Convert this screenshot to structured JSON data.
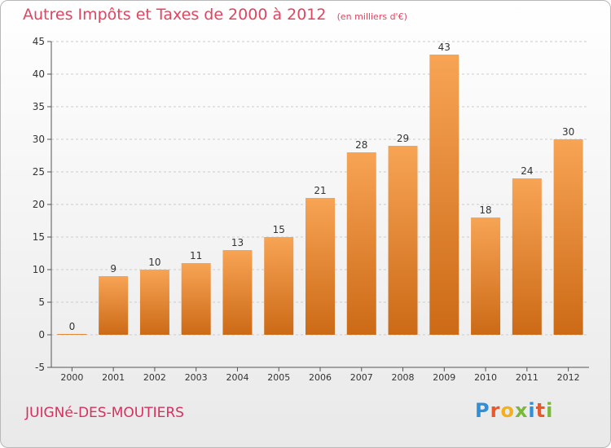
{
  "header": {
    "title": "Autres Impôts et Taxes de 2000 à 2012",
    "subtitle": "(en milliers d'€)"
  },
  "footer": {
    "commune": "JUIGNé-DES-MOUTIERS",
    "logo": "Proxiti"
  },
  "colors": {
    "bar_top": "#f7a455",
    "bar_bottom": "#cc6a16",
    "title": "#e0455f",
    "commune": "#d8305c"
  },
  "chart_data": {
    "type": "bar",
    "title": "Autres Impôts et Taxes de 2000 à 2012",
    "subtitle": "(en milliers d'€)",
    "categories": [
      "2000",
      "2001",
      "2002",
      "2003",
      "2004",
      "2005",
      "2006",
      "2007",
      "2008",
      "2009",
      "2010",
      "2011",
      "2012"
    ],
    "values": [
      0,
      9,
      10,
      11,
      13,
      15,
      21,
      28,
      29,
      43,
      18,
      24,
      30
    ],
    "ylim": [
      -5,
      45
    ],
    "yticks": [
      -5,
      0,
      5,
      10,
      15,
      20,
      25,
      30,
      35,
      40,
      45
    ],
    "grid": true,
    "legend": "none"
  }
}
